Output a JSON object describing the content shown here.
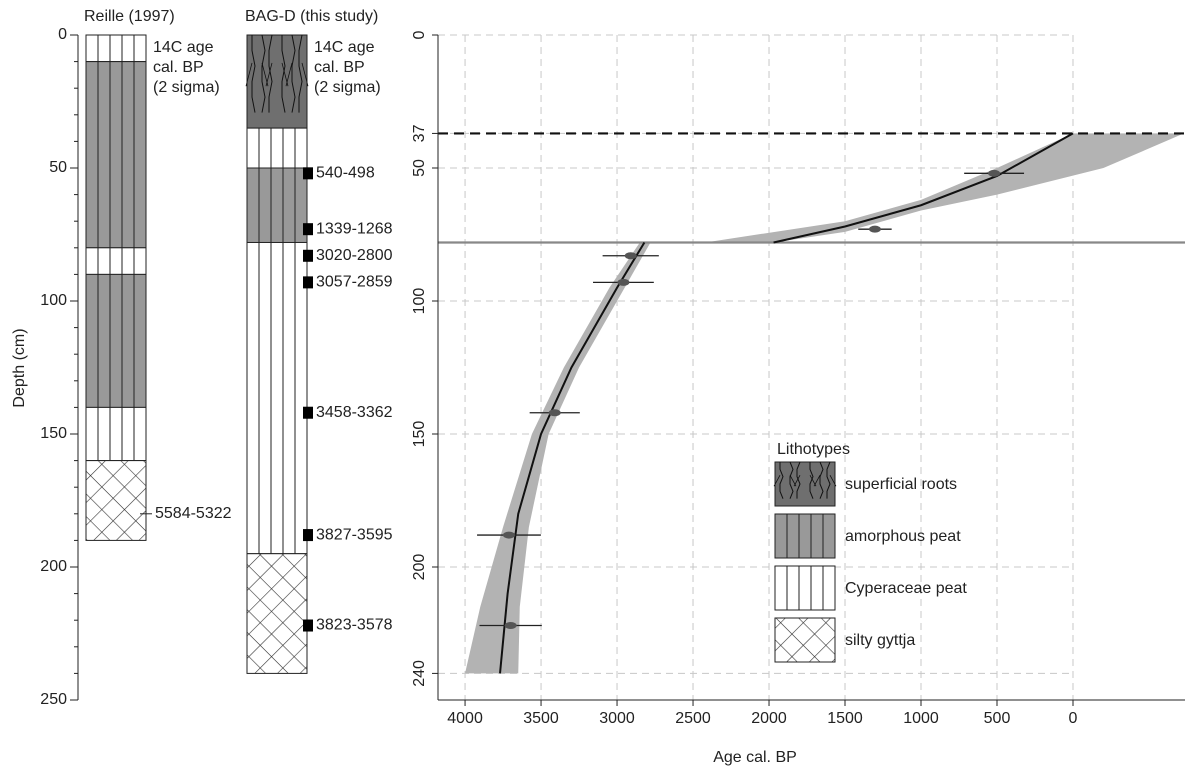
{
  "chart_data": [
    {
      "type": "column",
      "title": "Reille (1997)",
      "note": [
        "14C age",
        "cal. BP",
        "(2 sigma)"
      ],
      "ylabel": "Depth (cm)",
      "ylim": [
        0,
        250
      ],
      "yticks": [
        0,
        50,
        100,
        150,
        200,
        250
      ],
      "yminor_step": 10,
      "layers": [
        {
          "top": 0,
          "bottom": 10,
          "lithotype": "Cyperaceae peat"
        },
        {
          "top": 10,
          "bottom": 80,
          "lithotype": "amorphous peat"
        },
        {
          "top": 80,
          "bottom": 90,
          "lithotype": "Cyperaceae peat"
        },
        {
          "top": 90,
          "bottom": 140,
          "lithotype": "amorphous peat"
        },
        {
          "top": 140,
          "bottom": 160,
          "lithotype": "Cyperaceae peat"
        },
        {
          "top": 160,
          "bottom": 190,
          "lithotype": "silty gyttja"
        }
      ],
      "dates": {
        "labels": [
          "5584-5322"
        ],
        "values": [
          180
        ]
      },
      "date_marker": "tick"
    },
    {
      "type": "column",
      "title": "BAG-D (this study)",
      "note": [
        "14C age",
        "cal. BP",
        "(2 sigma)"
      ],
      "layers": [
        {
          "top": 0,
          "bottom": 35,
          "lithotype": "superficial roots"
        },
        {
          "top": 35,
          "bottom": 50,
          "lithotype": "Cyperaceae peat"
        },
        {
          "top": 50,
          "bottom": 78,
          "lithotype": "amorphous peat"
        },
        {
          "top": 78,
          "bottom": 195,
          "lithotype": "Cyperaceae peat"
        },
        {
          "top": 195,
          "bottom": 240,
          "lithotype": "silty gyttja"
        }
      ],
      "dates": {
        "labels": [
          "540-498",
          "1339-1268",
          "3020-2800",
          "3057-2859",
          "3458-3362",
          "3827-3595",
          "3823-3578"
        ],
        "values": [
          52,
          73,
          83,
          93,
          142,
          188,
          222
        ]
      },
      "date_marker": "square"
    },
    {
      "type": "age-depth",
      "xlabel": "Age cal. BP",
      "xlim": [
        4178,
        -737
      ],
      "xticks": [
        4000,
        3500,
        3000,
        2500,
        2000,
        1500,
        1000,
        500,
        0
      ],
      "ylim": [
        0,
        250
      ],
      "yticks": [
        0,
        37,
        50,
        100,
        150,
        200,
        240
      ],
      "grid": true,
      "hlines": [
        {
          "value": 37,
          "color": "#111111",
          "style": "dashed"
        },
        {
          "value": 78,
          "color": "#888888",
          "style": "solid"
        }
      ],
      "bands": [
        {
          "color": "#b3b3b3",
          "x": [
            0,
            500,
            1000,
            1500,
            2420,
            1970,
            1500,
            1000,
            500,
            -200,
            -730
          ],
          "values": [
            37,
            50,
            62,
            70,
            78,
            78,
            74,
            66,
            60,
            50,
            37
          ]
        },
        {
          "color": "#b3b3b3",
          "x": [
            2850,
            3050,
            3350,
            3560,
            3750,
            3900,
            4000,
            3650,
            3640,
            3580,
            3450,
            3250,
            2950,
            2780
          ],
          "values": [
            78,
            95,
            125,
            150,
            185,
            215,
            240,
            240,
            215,
            185,
            150,
            125,
            95,
            78
          ]
        }
      ],
      "series": [
        {
          "color": "#111111",
          "x": [
            0,
            500,
            1000,
            1500,
            1970
          ],
          "values": [
            37,
            53,
            64,
            72,
            78
          ]
        },
        {
          "color": "#111111",
          "x": [
            2820,
            3000,
            3300,
            3500,
            3650,
            3720,
            3770
          ],
          "values": [
            78,
            95,
            125,
            150,
            180,
            210,
            240
          ]
        }
      ],
      "points": {
        "color": "#555555",
        "x": [
          519,
          1303,
          2910,
          2958,
          3410,
          3711,
          3700
        ],
        "values": [
          52,
          73,
          83,
          93,
          142,
          188,
          222
        ],
        "errors": [
          197,
          110,
          185,
          200,
          165,
          210,
          205
        ]
      }
    }
  ],
  "legend": {
    "title": "Lithotypes",
    "entries": [
      {
        "name": "superficial roots",
        "pattern": "roots"
      },
      {
        "name": "amorphous peat",
        "pattern": "vlines-gray"
      },
      {
        "name": "Cyperaceae peat",
        "pattern": "vlines"
      },
      {
        "name": "silty gyttja",
        "pattern": "crosshatch"
      }
    ]
  }
}
